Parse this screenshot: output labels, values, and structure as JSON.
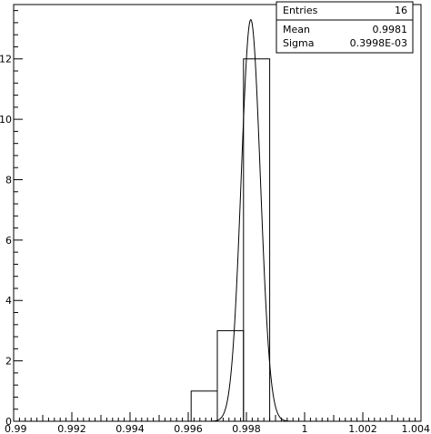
{
  "chart_data": {
    "type": "histogram",
    "title": "",
    "xlabel": "",
    "ylabel": "",
    "xlim": [
      0.99,
      1.004
    ],
    "ylim": [
      0,
      13.8
    ],
    "x_ticks": [
      "0.99",
      "0.992",
      "0.994",
      "0.996",
      "0.998",
      "1",
      "1.002",
      "1.004"
    ],
    "x_tick_values": [
      0.99,
      0.992,
      0.994,
      0.996,
      0.998,
      1.0,
      1.002,
      1.004
    ],
    "y_ticks": [
      "0",
      "2",
      "4",
      "6",
      "8",
      "10",
      "12"
    ],
    "y_tick_values": [
      0,
      2,
      4,
      6,
      8,
      10,
      12
    ],
    "bins": [
      {
        "x_low": 0.9961,
        "x_high": 0.997,
        "count": 1
      },
      {
        "x_low": 0.997,
        "x_high": 0.9979,
        "count": 3
      },
      {
        "x_low": 0.9979,
        "x_high": 0.9988,
        "count": 12
      }
    ],
    "fit": {
      "type": "gaussian",
      "amplitude": 13.3,
      "mean": 0.99815,
      "sigma": 0.00033
    },
    "grid": false,
    "legend": "none"
  },
  "stats": {
    "entries_label": "Entries",
    "entries_value": "16",
    "mean_label": "Mean",
    "mean_value": "0.9981",
    "sigma_label": "Sigma",
    "sigma_value": "0.3998E-03"
  }
}
